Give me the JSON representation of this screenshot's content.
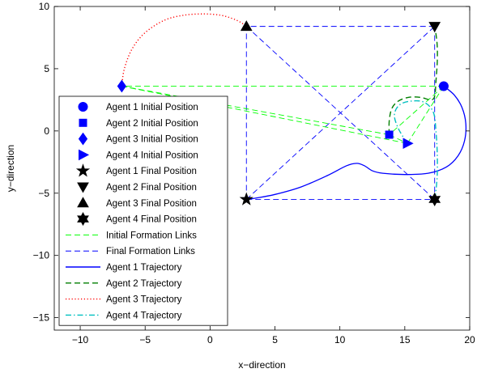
{
  "chart_data": {
    "type": "line",
    "title": "",
    "xlabel": "x−direction",
    "ylabel": "y−direction",
    "xlim": [
      -12,
      20
    ],
    "ylim": [
      -16,
      10
    ],
    "xticks": [
      -10,
      -5,
      0,
      5,
      10,
      15,
      20
    ],
    "yticks": [
      -15,
      -10,
      -5,
      0,
      5,
      10
    ],
    "xtick_labels": [
      "−10",
      "−5",
      "0",
      "5",
      "10",
      "15",
      "20"
    ],
    "ytick_labels": [
      "−15",
      "−10",
      "−5",
      "0",
      "5",
      "10"
    ],
    "grid": false,
    "legend_position": "lower-left",
    "initial_positions": [
      {
        "name": "Agent 1 Initial Position",
        "marker": "circle",
        "color": "#0000ff",
        "x": 18.0,
        "y": 3.6
      },
      {
        "name": "Agent 2 Initial Position",
        "marker": "square",
        "color": "#0000ff",
        "x": 13.8,
        "y": -0.3
      },
      {
        "name": "Agent 3 Initial Position",
        "marker": "diamond",
        "color": "#0000ff",
        "x": -6.8,
        "y": 3.6
      },
      {
        "name": "Agent 4 Initial Position",
        "marker": "triangle-right",
        "color": "#0000ff",
        "x": 15.2,
        "y": -1.0
      }
    ],
    "final_positions": [
      {
        "name": "Agent 1 Final Position",
        "marker": "pentagram",
        "color": "#000000",
        "x": 2.8,
        "y": -5.5
      },
      {
        "name": "Agent 2 Final Position",
        "marker": "triangle-down",
        "color": "#000000",
        "x": 17.3,
        "y": 8.4
      },
      {
        "name": "Agent 3 Final Position",
        "marker": "triangle-up",
        "color": "#000000",
        "x": 2.8,
        "y": 8.4
      },
      {
        "name": "Agent 4 Final Position",
        "marker": "hexagram",
        "color": "#000000",
        "x": 17.3,
        "y": -5.5
      }
    ],
    "initial_formation_links": {
      "name": "Initial Formation Links",
      "color": "#00ff00",
      "style": "dashed",
      "edges": [
        [
          1,
          2
        ],
        [
          1,
          3
        ],
        [
          1,
          4
        ],
        [
          2,
          3
        ],
        [
          2,
          4
        ],
        [
          3,
          4
        ]
      ]
    },
    "final_formation_links": {
      "name": "Final Formation Links",
      "color": "#0000ff",
      "style": "dashed",
      "edges": [
        [
          1,
          2
        ],
        [
          1,
          3
        ],
        [
          1,
          4
        ],
        [
          2,
          3
        ],
        [
          2,
          4
        ],
        [
          3,
          4
        ]
      ]
    },
    "trajectories": [
      {
        "name": "Agent 1 Trajectory",
        "color": "#0000ff",
        "style": "solid",
        "x": [
          18.0,
          18.8,
          19.4,
          19.7,
          19.6,
          19.1,
          18.2,
          16.8,
          15.0,
          13.3,
          12.5,
          11.9,
          11.3,
          10.5,
          9.0,
          7.0,
          5.0,
          3.5,
          2.8
        ],
        "y": [
          3.6,
          2.9,
          1.9,
          0.6,
          -0.8,
          -2.0,
          -2.9,
          -3.4,
          -3.5,
          -3.4,
          -3.2,
          -2.8,
          -2.6,
          -2.8,
          -3.6,
          -4.5,
          -5.1,
          -5.4,
          -5.5
        ]
      },
      {
        "name": "Agent 2 Trajectory",
        "color": "#007f00",
        "style": "dashed",
        "x": [
          13.8,
          13.8,
          14.0,
          14.5,
          15.3,
          16.2,
          17.0,
          17.3,
          17.4,
          17.5,
          17.5,
          17.4,
          17.3
        ],
        "y": [
          -0.3,
          0.8,
          1.8,
          2.4,
          2.7,
          2.7,
          2.5,
          2.8,
          4.0,
          5.5,
          6.8,
          7.8,
          8.4
        ]
      },
      {
        "name": "Agent 3 Trajectory",
        "color": "#ff0000",
        "style": "dotted",
        "x": [
          -6.8,
          -6.6,
          -6.0,
          -5.0,
          -3.5,
          -2.0,
          -0.5,
          0.8,
          1.8,
          2.4,
          2.8
        ],
        "y": [
          3.6,
          5.0,
          6.6,
          7.9,
          8.9,
          9.3,
          9.4,
          9.3,
          9.0,
          8.7,
          8.4
        ]
      },
      {
        "name": "Agent 4 Trajectory",
        "color": "#00bfbf",
        "style": "dashdot",
        "x": [
          15.2,
          14.5,
          14.2,
          14.6,
          15.5,
          16.5,
          17.2,
          17.4,
          17.5,
          17.5,
          17.4,
          17.3
        ],
        "y": [
          -1.0,
          0.2,
          1.3,
          2.1,
          2.4,
          2.3,
          1.5,
          0.0,
          -1.8,
          -3.5,
          -4.8,
          -5.5
        ]
      }
    ],
    "legend_entries": [
      "Agent 1 Initial Position",
      "Agent 2 Initial Position",
      "Agent 3 Initial Position",
      "Agent 4 Initial Position",
      "Agent 1 Final Position",
      "Agent 2 Final Position",
      "Agent 3 Final Position",
      "Agent 4 Final Position",
      "Initial Formation Links",
      "Final Formation Links",
      "Agent 1 Trajectory",
      "Agent 2 Trajectory",
      "Agent 3 Trajectory",
      "Agent 4 Trajectory"
    ]
  }
}
